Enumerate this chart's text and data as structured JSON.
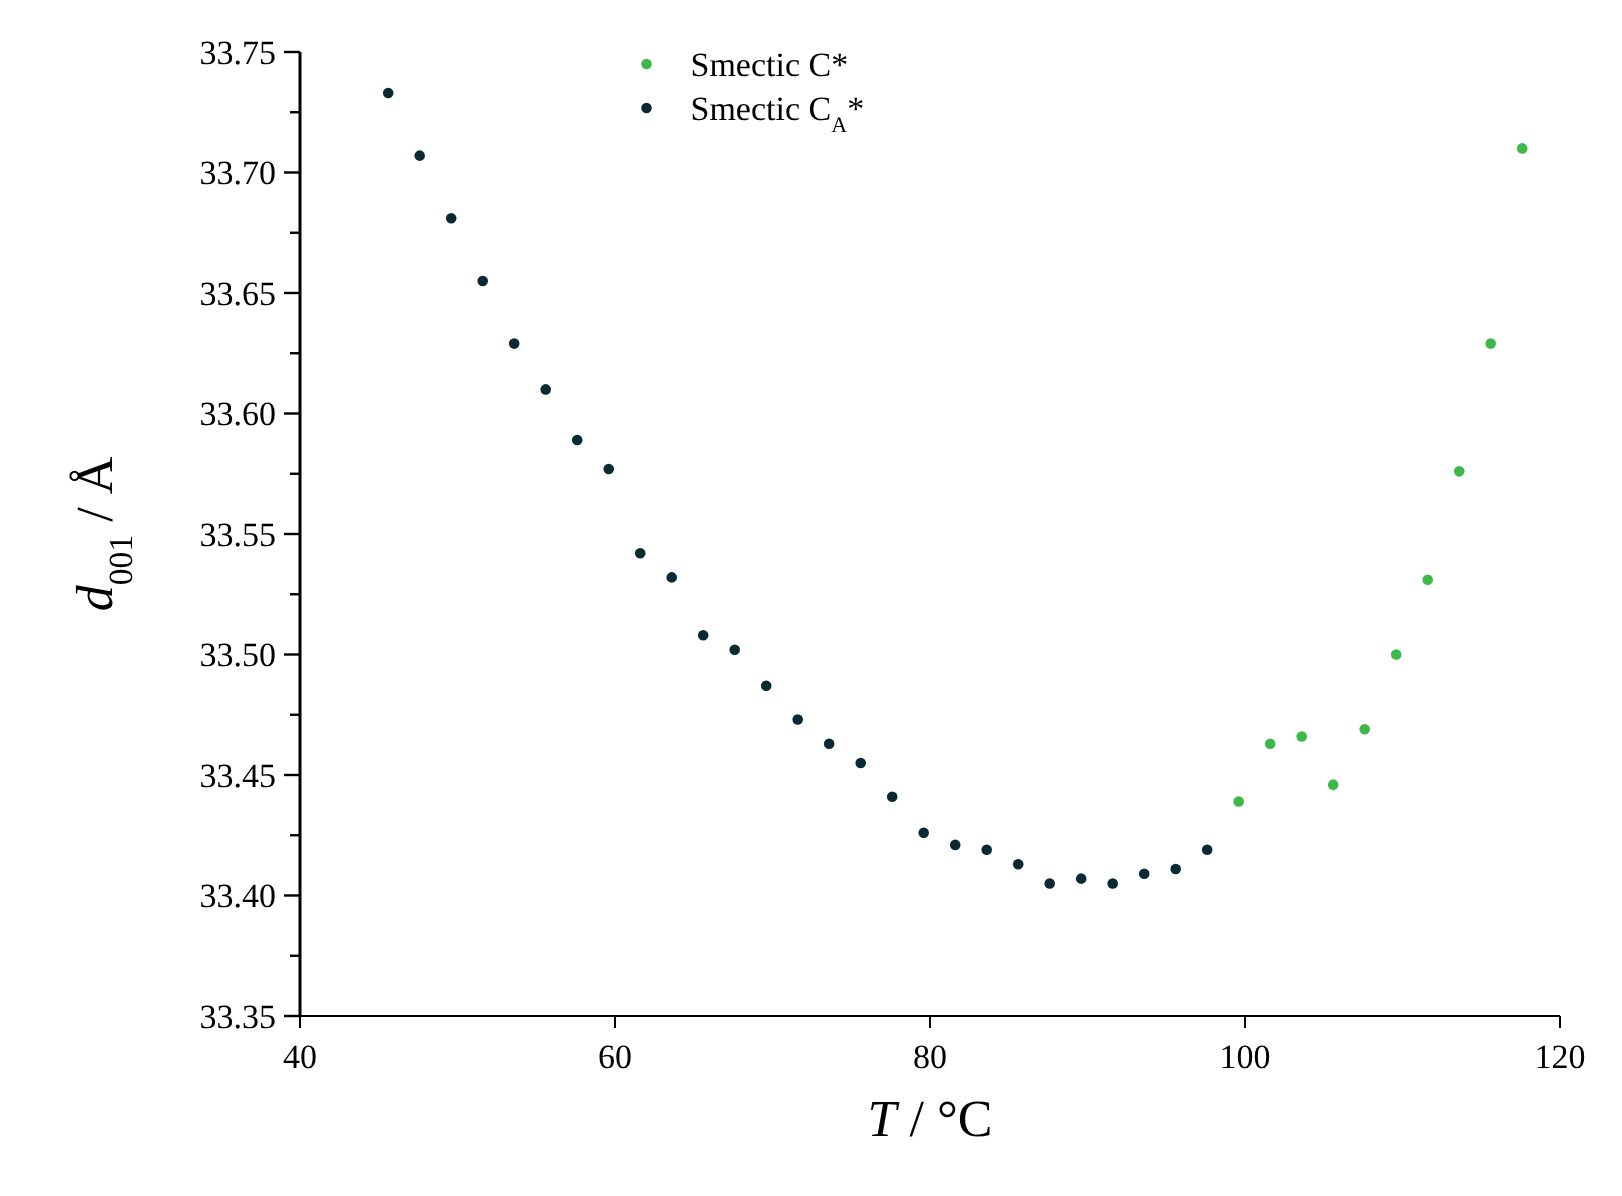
{
  "chart_data": {
    "type": "scatter",
    "xlabel": "T / °C",
    "ylabel": "d$_{001}$ / Å",
    "xlim": [
      40,
      120
    ],
    "xticks": [
      40,
      60,
      80,
      100,
      120
    ],
    "ylim": [
      33.35,
      33.75
    ],
    "yticks": [
      33.35,
      {
        "value": 33.375,
        "label": null
      },
      {
        "value": 33.4,
        "label": "33.40"
      },
      {
        "value": 33.425,
        "label": null
      },
      33.45,
      {
        "value": 33.475,
        "label": null
      },
      {
        "value": 33.5,
        "label": "33.50"
      },
      {
        "value": 33.525,
        "label": null
      },
      33.55,
      {
        "value": 33.575,
        "label": null
      },
      {
        "value": 33.6,
        "label": "33.60"
      },
      {
        "value": 33.625,
        "label": null
      },
      33.65,
      {
        "value": 33.675,
        "label": null
      },
      {
        "value": 33.7,
        "label": "33.70"
      },
      {
        "value": 33.725,
        "label": null
      },
      33.75
    ],
    "marker": "circle",
    "legend": "top",
    "grid": false,
    "series": [
      {
        "name": "Smectic C*",
        "color": "#3cb94a",
        "x": [
          99.6,
          101.6,
          103.6,
          105.6,
          107.6,
          109.6,
          111.6,
          113.6,
          115.6,
          117.6
        ],
        "values": [
          33.439,
          33.463,
          33.466,
          33.446,
          33.469,
          33.5,
          33.531,
          33.576,
          33.629,
          33.71
        ]
      },
      {
        "name": "Smectic C$_{A}$*",
        "color": "#0a2a33",
        "x": [
          45.6,
          47.6,
          49.6,
          51.6,
          53.6,
          55.6,
          57.6,
          59.6,
          61.6,
          63.6,
          65.6,
          67.6,
          69.6,
          71.6,
          73.6,
          75.6,
          77.6,
          79.6,
          81.6,
          83.6,
          85.6,
          87.6,
          89.6,
          91.6,
          93.6,
          95.6,
          97.6
        ],
        "values": [
          33.733,
          33.707,
          33.681,
          33.655,
          33.629,
          33.61,
          33.589,
          33.577,
          33.542,
          33.532,
          33.508,
          33.502,
          33.487,
          33.473,
          33.463,
          33.455,
          33.441,
          33.426,
          33.421,
          33.419,
          33.413,
          33.405,
          33.407,
          33.405,
          33.409,
          33.411,
          33.419
        ]
      }
    ]
  }
}
